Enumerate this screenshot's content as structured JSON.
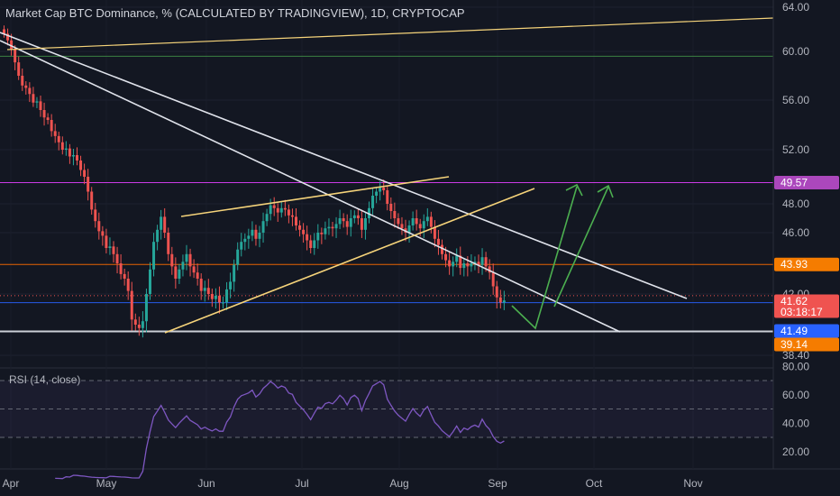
{
  "header": {
    "title": "Market Cap BTC Dominance, % (CALCULATED BY TRADINGVIEW), 1D, CRYPTOCAP"
  },
  "rsi": {
    "label": "RSI (14, close)"
  },
  "colors": {
    "background": "#131722",
    "up": "#26a69a",
    "down": "#ef5350",
    "rsi_line": "#7e57c2",
    "axis_text": "#b2b5be",
    "white_line": "#e0e3eb",
    "yellow_line": "#f5d37a",
    "orange_line": "#ff6d00",
    "pink_line": "#e040fb",
    "blue_line": "#2962ff",
    "green_arrow": "#4caf50"
  },
  "chart_data": [
    {
      "type": "candlestick",
      "title": "Market Cap BTC Dominance, % (CALCULATED BY TRADINGVIEW), 1D, CRYPTOCAP",
      "y_ticks": [
        64.0,
        60.0,
        56.0,
        52.0,
        48.0,
        46.0,
        42.0,
        38.4
      ],
      "y_tick_labels": [
        "64.00",
        "60.00",
        "56.00",
        "52.00",
        "48.00",
        "46.00",
        "42.00",
        "38.40"
      ],
      "x_tick_labels": [
        "Apr",
        "May",
        "Jun",
        "Jul",
        "Aug",
        "Sep",
        "Oct",
        "Nov"
      ],
      "price_badges": [
        {
          "value": "49.57",
          "color": "#ab47bc"
        },
        {
          "value": "43.93",
          "color": "#f57c00"
        },
        {
          "value": "41.62",
          "sub": "03:18:17",
          "color": "#ef5350"
        },
        {
          "value": "41.49",
          "color": "#2962ff"
        },
        {
          "value": "39.14",
          "color": "#f57c00"
        }
      ],
      "horizontal_levels": [
        {
          "value": 59.6,
          "color": "#4caf50"
        },
        {
          "value": 49.57,
          "color": "#e040fb"
        },
        {
          "value": 43.93,
          "color": "#ff6d00"
        },
        {
          "value": 41.49,
          "color": "#2962ff"
        },
        {
          "value": 39.8,
          "color": "#e0e3eb"
        }
      ],
      "closes": [
        61.6,
        61.0,
        60.2,
        59.1,
        58.0,
        57.2,
        57.0,
        56.5,
        55.8,
        55.9,
        55.2,
        54.6,
        54.4,
        53.5,
        53.1,
        52.6,
        52.0,
        52.1,
        51.5,
        51.6,
        51.2,
        50.5,
        50.0,
        48.9,
        47.6,
        46.8,
        46.1,
        45.8,
        45.0,
        45.1,
        44.6,
        44.0,
        43.3,
        43.0,
        42.2,
        40.5,
        40.2,
        40.0,
        40.4,
        42.0,
        43.6,
        45.4,
        46.2,
        47.1,
        46.0,
        44.6,
        43.8,
        43.0,
        43.6,
        44.1,
        44.6,
        43.8,
        43.4,
        43.0,
        42.2,
        42.4,
        42.0,
        41.7,
        41.9,
        41.5,
        41.5,
        42.3,
        42.8,
        43.9,
        44.9,
        45.4,
        45.6,
        45.8,
        46.2,
        45.6,
        46.0,
        46.8,
        47.3,
        47.9,
        47.7,
        47.4,
        47.7,
        47.6,
        47.2,
        47.1,
        46.5,
        46.2,
        45.9,
        45.5,
        45.0,
        45.5,
        46.0,
        45.9,
        46.3,
        46.4,
        46.3,
        46.6,
        47.0,
        46.8,
        46.4,
        47.0,
        47.2,
        47.0,
        46.2,
        47.0,
        47.7,
        48.6,
        48.9,
        49.2,
        49.0,
        48.0,
        47.5,
        47.0,
        46.6,
        46.3,
        46.0,
        46.5,
        47.0,
        46.6,
        46.3,
        46.8,
        47.1,
        46.4,
        45.6,
        45.2,
        44.6,
        44.2,
        43.8,
        44.1,
        44.5,
        43.7,
        44.0,
        43.8,
        44.0,
        44.1,
        43.9,
        44.4,
        43.8,
        43.4,
        42.5,
        41.8,
        41.5,
        41.62
      ],
      "rsi_y_ticks": [
        80.0,
        60.0,
        40.0,
        20.0
      ],
      "rsi_y_tick_labels": [
        "80.00",
        "60.00",
        "40.00",
        "20.00"
      ],
      "rsi_bands": [
        70,
        50,
        30
      ]
    }
  ]
}
